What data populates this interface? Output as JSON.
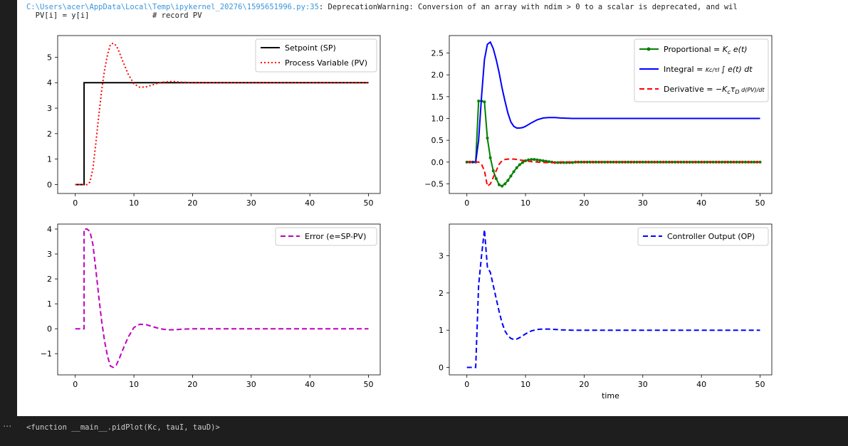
{
  "stderr": {
    "path": "C:\\Users\\acer\\AppData\\Local\\Temp\\ipykernel_20276\\1595651996.py:35",
    "message": ": DeprecationWarning: Conversion of an array with ndim > 0 to a scalar is deprecated, and wil",
    "code_line": "  PV[i] = y[i]              # record PV"
  },
  "output": {
    "prompt_icon": "ellipsis-icon",
    "prompt": "···",
    "repr": "<function __main__.pidPlot(Kc, tauI, tauD)>"
  },
  "chart_data": [
    {
      "type": "line",
      "xlim": [
        -3,
        52
      ],
      "ylim": [
        -0.35,
        5.85
      ],
      "xticks": [
        0,
        10,
        20,
        30,
        40,
        50
      ],
      "yticks": [
        0,
        1,
        2,
        3,
        4,
        5
      ],
      "xlabel": "",
      "ylabel": "",
      "grid": false,
      "legend": "top-right",
      "series": [
        {
          "name": "Setpoint (SP)",
          "color": "#000000",
          "style": "solid",
          "x": [
            0,
            1.5,
            1.5,
            2,
            50
          ],
          "y": [
            0,
            0,
            4,
            4,
            4
          ]
        },
        {
          "name": "Process Variable (PV)",
          "color": "#ff0000",
          "style": "dotted",
          "x": [
            0,
            2,
            2.5,
            3,
            3.5,
            4,
            4.5,
            5,
            5.5,
            6,
            6.5,
            7,
            7.5,
            8,
            9,
            10,
            11,
            12,
            13,
            14,
            15,
            16,
            17,
            18,
            20,
            25,
            30,
            40,
            50
          ],
          "y": [
            0,
            0,
            0.1,
            0.6,
            1.6,
            2.7,
            3.7,
            4.5,
            5.1,
            5.5,
            5.55,
            5.45,
            5.2,
            4.9,
            4.35,
            3.95,
            3.82,
            3.83,
            3.9,
            3.97,
            4.02,
            4.04,
            4.04,
            4.02,
            4,
            4,
            4,
            4,
            4
          ]
        }
      ]
    },
    {
      "type": "line",
      "xlim": [
        -3,
        52
      ],
      "ylim": [
        -0.72,
        2.9
      ],
      "xticks": [
        0,
        10,
        20,
        30,
        40,
        50
      ],
      "yticks": [
        -0.5,
        0.0,
        0.5,
        1.0,
        1.5,
        2.0,
        2.5
      ],
      "xlabel": "",
      "ylabel": "",
      "grid": false,
      "legend": "top-right",
      "series": [
        {
          "name": "Proportional = K_c e(t)",
          "color": "#008000",
          "style": "solid-markers",
          "x": [
            0,
            0.5,
            1,
            1.5,
            2,
            2.5,
            3,
            3.5,
            4,
            4.5,
            5,
            5.5,
            6,
            6.5,
            7,
            7.5,
            8,
            8.5,
            9,
            9.5,
            10,
            10.5,
            11,
            11.5,
            12,
            12.5,
            13,
            13.5,
            14,
            14.5,
            15,
            15.5,
            16,
            16.5,
            17,
            17.5,
            18,
            18.5,
            19,
            19.5,
            20,
            20.5,
            21,
            21.5,
            22,
            22.5,
            23,
            23.5,
            24,
            24.5,
            25,
            25.5,
            26,
            26.5,
            27,
            27.5,
            28,
            28.5,
            29,
            29.5,
            30,
            30.5,
            31,
            31.5,
            32,
            32.5,
            33,
            33.5,
            34,
            34.5,
            35,
            35.5,
            36,
            36.5,
            37,
            37.5,
            38,
            38.5,
            39,
            39.5,
            40,
            40.5,
            41,
            41.5,
            42,
            42.5,
            43,
            43.5,
            44,
            44.5,
            45,
            45.5,
            46,
            46.5,
            47,
            47.5,
            48,
            48.5,
            49,
            49.5,
            50
          ],
          "y": [
            0,
            0,
            0,
            0,
            1.4,
            1.4,
            1.38,
            0.55,
            0.1,
            -0.2,
            -0.38,
            -0.52,
            -0.55,
            -0.5,
            -0.42,
            -0.32,
            -0.22,
            -0.13,
            -0.06,
            -0.01,
            0.03,
            0.05,
            0.06,
            0.06,
            0.05,
            0.04,
            0.03,
            0.02,
            0.01,
            0,
            -0.01,
            -0.01,
            -0.01,
            -0.01,
            -0.01,
            -0.01,
            -0.01,
            0,
            0,
            0,
            0,
            0,
            0,
            0,
            0,
            0,
            0,
            0,
            0,
            0,
            0,
            0,
            0,
            0,
            0,
            0,
            0,
            0,
            0,
            0,
            0,
            0,
            0,
            0,
            0,
            0,
            0,
            0,
            0,
            0,
            0,
            0,
            0,
            0,
            0,
            0,
            0,
            0,
            0,
            0,
            0,
            0,
            0,
            0,
            0,
            0,
            0,
            0,
            0,
            0,
            0,
            0,
            0,
            0,
            0,
            0,
            0,
            0,
            0,
            0,
            0
          ]
        },
        {
          "name": "Integral = (K_c/τ_I) ∫ e(t) dt",
          "color": "#0000ff",
          "style": "solid",
          "x": [
            0,
            1.5,
            2,
            2.5,
            3,
            3.5,
            4,
            4.5,
            5,
            5.5,
            6,
            6.5,
            7,
            7.5,
            8,
            8.5,
            9,
            9.5,
            10,
            11,
            12,
            13,
            14,
            15,
            16,
            18,
            20,
            25,
            30,
            40,
            50
          ],
          "y": [
            0,
            0,
            0.5,
            1.5,
            2.35,
            2.7,
            2.75,
            2.6,
            2.35,
            2.05,
            1.7,
            1.4,
            1.12,
            0.92,
            0.82,
            0.78,
            0.78,
            0.79,
            0.82,
            0.9,
            0.97,
            1.01,
            1.02,
            1.02,
            1.01,
            1.0,
            1.0,
            1.0,
            1.0,
            1.0,
            1.0
          ]
        },
        {
          "name": "Derivative = −K_c τ_D d(PV)/dt",
          "color": "#ff0000",
          "style": "dashed",
          "x": [
            0,
            2,
            2.5,
            3,
            3.5,
            4,
            4.5,
            5,
            5.5,
            6,
            6.5,
            7,
            8,
            9,
            10,
            11,
            12,
            13,
            14,
            15,
            16,
            18,
            20,
            25,
            30,
            40,
            50
          ],
          "y": [
            0,
            0,
            -0.05,
            -0.2,
            -0.55,
            -0.5,
            -0.35,
            -0.2,
            -0.05,
            0.03,
            0.06,
            0.07,
            0.07,
            0.05,
            0.03,
            0.01,
            0,
            -0.01,
            -0.01,
            -0.01,
            0,
            0,
            0,
            0,
            0,
            0,
            0
          ]
        }
      ]
    },
    {
      "type": "line",
      "xlim": [
        -3,
        52
      ],
      "ylim": [
        -1.85,
        4.2
      ],
      "xticks": [
        0,
        10,
        20,
        30,
        40,
        50
      ],
      "yticks": [
        -1,
        0,
        1,
        2,
        3,
        4
      ],
      "xlabel": "",
      "ylabel": "",
      "grid": false,
      "legend": "top-right",
      "series": [
        {
          "name": "Error (e=SP-PV)",
          "color": "#bf00bf",
          "style": "dashed",
          "x": [
            0,
            1.5,
            1.5,
            2,
            2.5,
            3,
            3.5,
            4,
            4.5,
            5,
            5.5,
            6,
            6.5,
            7,
            7.5,
            8,
            9,
            10,
            11,
            12,
            13,
            14,
            15,
            16,
            17,
            18,
            20,
            25,
            30,
            40,
            50
          ],
          "y": [
            0,
            0,
            4,
            4,
            3.9,
            3.4,
            2.4,
            1.3,
            0.3,
            -0.5,
            -1.1,
            -1.5,
            -1.55,
            -1.45,
            -1.2,
            -0.9,
            -0.35,
            0.05,
            0.18,
            0.17,
            0.1,
            0.03,
            -0.02,
            -0.04,
            -0.04,
            -0.02,
            0,
            0,
            0,
            0,
            0
          ]
        }
      ]
    },
    {
      "type": "line",
      "xlim": [
        -3,
        52
      ],
      "ylim": [
        -0.2,
        3.85
      ],
      "xticks": [
        0,
        10,
        20,
        30,
        40,
        50
      ],
      "yticks": [
        0,
        1,
        2,
        3
      ],
      "xlabel": "time",
      "ylabel": "",
      "grid": false,
      "legend": "top-right",
      "series": [
        {
          "name": "Controller Output (OP)",
          "color": "#0000ff",
          "style": "dashed",
          "x": [
            0,
            1.5,
            2,
            2.5,
            3,
            3.5,
            4,
            4.5,
            5,
            5.5,
            6,
            6.5,
            7,
            7.5,
            8,
            8.5,
            9,
            10,
            11,
            12,
            13,
            14,
            15,
            16,
            18,
            20,
            25,
            30,
            40,
            50
          ],
          "y": [
            0,
            0,
            2.2,
            3.0,
            3.7,
            2.7,
            2.55,
            2.2,
            1.85,
            1.5,
            1.2,
            0.98,
            0.85,
            0.78,
            0.75,
            0.76,
            0.8,
            0.9,
            0.98,
            1.02,
            1.03,
            1.03,
            1.02,
            1.01,
            1.0,
            1.0,
            1.0,
            1.0,
            1.0,
            1.0
          ]
        }
      ]
    }
  ]
}
